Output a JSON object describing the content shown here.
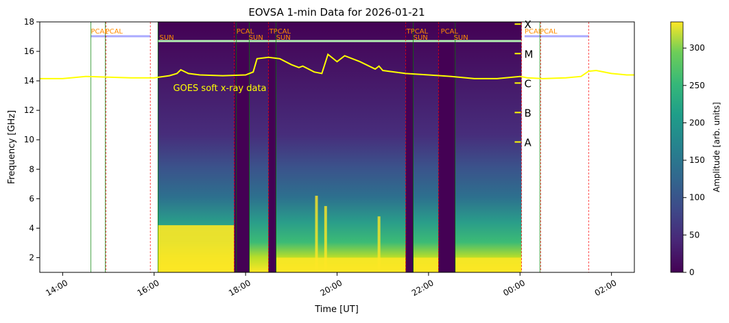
{
  "chart_data": {
    "type": "heatmap",
    "title": "EOVSA 1-min Data for 2026-01-21",
    "xlabel": "Time [UT]",
    "ylabel": "Frequency [GHz]",
    "colorbar_label": "Amplitude [arb. units]",
    "colormap": "viridis",
    "xlim": [
      "13:30",
      "02:30"
    ],
    "ylim": [
      1,
      18
    ],
    "clim": [
      0,
      335
    ],
    "x_ticks": [
      "14:00",
      "16:00",
      "18:00",
      "20:00",
      "22:00",
      "00:00",
      "02:00"
    ],
    "x_tick_hours": [
      14,
      16,
      18,
      20,
      22,
      24,
      26
    ],
    "y_ticks": [
      "2",
      "4",
      "6",
      "8",
      "10",
      "12",
      "14",
      "16",
      "18"
    ],
    "y_tick_values": [
      2,
      4,
      6,
      8,
      10,
      12,
      14,
      16,
      18
    ],
    "colorbar_ticks": [
      "0",
      "50",
      "100",
      "150",
      "200",
      "250",
      "300"
    ],
    "colorbar_tick_values": [
      0,
      50,
      100,
      150,
      200,
      250,
      300
    ],
    "goes_label": "GOES soft x-ray data",
    "goes_color": "#ffff00",
    "goes_classes": [
      {
        "label": "X",
        "freq": 17.6
      },
      {
        "label": "M",
        "freq": 15.6
      },
      {
        "label": "C",
        "freq": 13.6
      },
      {
        "label": "B",
        "freq": 11.6
      },
      {
        "label": "A",
        "freq": 9.6
      }
    ],
    "scan_labels": [
      {
        "text": "PCAL",
        "time": "14:37",
        "freq": 17.2
      },
      {
        "text": "PCAL",
        "time": "14:56",
        "freq": 17.2
      },
      {
        "text": "SUN",
        "time": "16:07",
        "freq": 16.8
      },
      {
        "text": "PCAL",
        "time": "17:48",
        "freq": 17.2
      },
      {
        "text": "SUN",
        "time": "18:04",
        "freq": 16.8
      },
      {
        "text": "TPCAL",
        "time": "18:31",
        "freq": 17.2
      },
      {
        "text": "SUN",
        "time": "18:40",
        "freq": 16.8
      },
      {
        "text": "TPCAL",
        "time": "21:31",
        "freq": 17.2
      },
      {
        "text": "SUN",
        "time": "21:40",
        "freq": 16.8
      },
      {
        "text": "PCAL",
        "time": "22:16",
        "freq": 17.2
      },
      {
        "text": "SUN",
        "time": "22:33",
        "freq": 16.8
      },
      {
        "text": "PCAL",
        "time": "00:06",
        "freq": 17.2
      },
      {
        "text": "PCAL",
        "time": "00:26",
        "freq": 17.2
      }
    ],
    "label_color": "#ff8c00",
    "spectrogram_extent": [
      "16:05",
      "00:02"
    ],
    "gaps": [
      [
        "17:45",
        "18:05"
      ],
      [
        "18:30",
        "18:40"
      ],
      [
        "21:30",
        "21:40"
      ],
      [
        "22:13",
        "22:35"
      ]
    ],
    "goes_xray": [
      [
        "13:30",
        14.15
      ],
      [
        "14:00",
        14.15
      ],
      [
        "14:30",
        14.3
      ],
      [
        "15:00",
        14.25
      ],
      [
        "15:30",
        14.2
      ],
      [
        "16:00",
        14.2
      ],
      [
        "16:20",
        14.35
      ],
      [
        "16:30",
        14.5
      ],
      [
        "16:35",
        14.75
      ],
      [
        "16:45",
        14.5
      ],
      [
        "17:00",
        14.4
      ],
      [
        "17:30",
        14.35
      ],
      [
        "18:00",
        14.4
      ],
      [
        "18:10",
        14.6
      ],
      [
        "18:15",
        15.5
      ],
      [
        "18:30",
        15.6
      ],
      [
        "18:45",
        15.5
      ],
      [
        "19:00",
        15.1
      ],
      [
        "19:10",
        14.9
      ],
      [
        "19:15",
        15.0
      ],
      [
        "19:30",
        14.6
      ],
      [
        "19:40",
        14.5
      ],
      [
        "19:48",
        15.8
      ],
      [
        "20:00",
        15.3
      ],
      [
        "20:10",
        15.7
      ],
      [
        "20:30",
        15.3
      ],
      [
        "20:50",
        14.8
      ],
      [
        "20:55",
        15.0
      ],
      [
        "21:00",
        14.7
      ],
      [
        "21:30",
        14.5
      ],
      [
        "22:00",
        14.4
      ],
      [
        "22:30",
        14.3
      ],
      [
        "23:00",
        14.15
      ],
      [
        "23:30",
        14.15
      ],
      [
        "00:00",
        14.3
      ],
      [
        "00:10",
        14.2
      ],
      [
        "00:30",
        14.15
      ],
      [
        "01:00",
        14.2
      ],
      [
        "01:20",
        14.3
      ],
      [
        "01:30",
        14.65
      ],
      [
        "01:40",
        14.7
      ],
      [
        "02:00",
        14.5
      ],
      [
        "02:20",
        14.4
      ],
      [
        "02:30",
        14.4
      ]
    ]
  }
}
